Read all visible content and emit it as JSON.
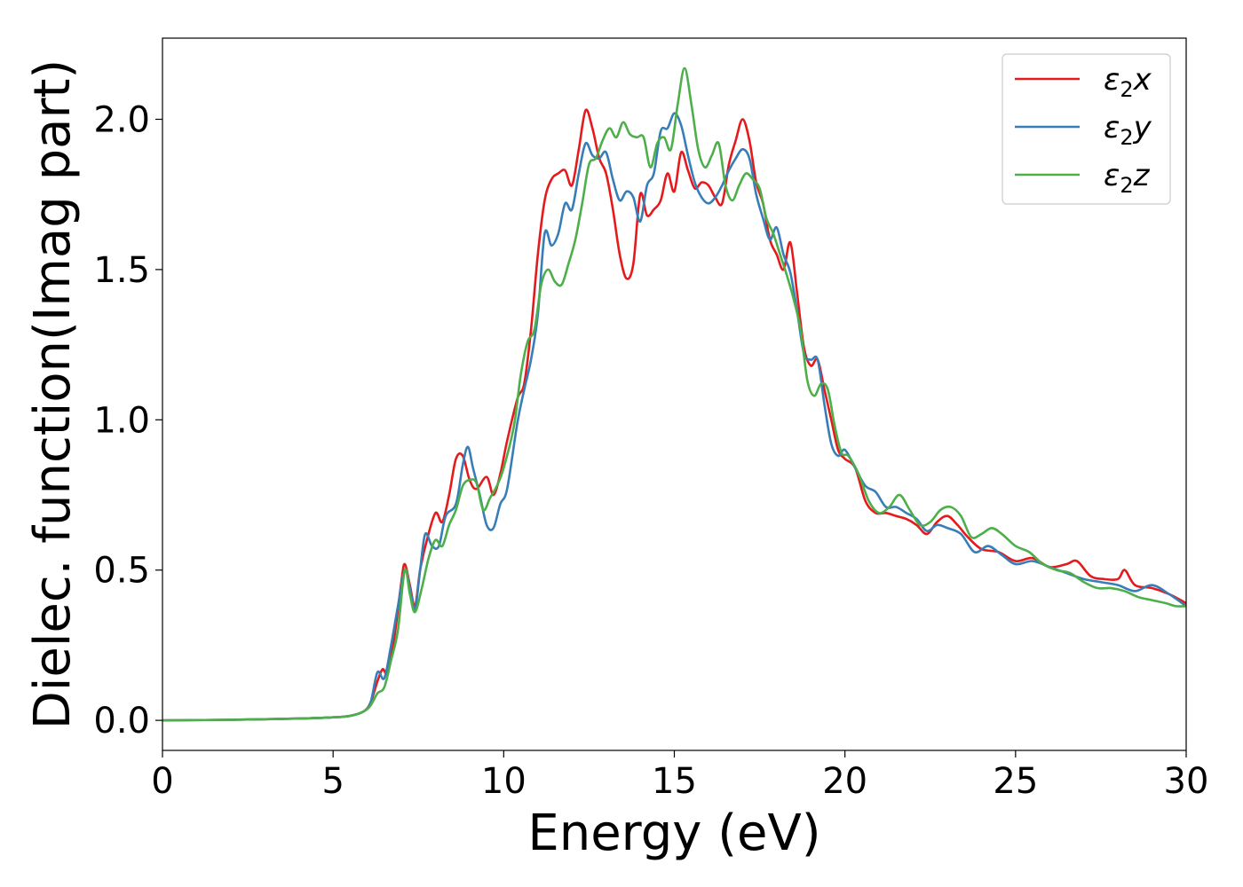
{
  "chart_data": {
    "type": "line",
    "title": "",
    "xlabel": "Energy (eV)",
    "ylabel": "Dielec. function(Imag part)",
    "xlim": [
      0,
      30
    ],
    "ylim": [
      -0.1,
      2.27
    ],
    "xticks": [
      0,
      5,
      10,
      15,
      20,
      25,
      30
    ],
    "xtick_labels": [
      "0",
      "5",
      "10",
      "15",
      "20",
      "25",
      "30"
    ],
    "yticks": [
      0.0,
      0.5,
      1.0,
      1.5,
      2.0
    ],
    "ytick_labels": [
      "0.0",
      "0.5",
      "1.0",
      "1.5",
      "2.0"
    ],
    "grid": false,
    "legend_position": "top-right",
    "series": [
      {
        "name": "ε2x",
        "legend_base": "ε",
        "legend_sub": "2",
        "legend_var": "x",
        "color": "#e41a1c",
        "points": [
          [
            0,
            0.0
          ],
          [
            2,
            0.002
          ],
          [
            4,
            0.006
          ],
          [
            5,
            0.01
          ],
          [
            5.5,
            0.015
          ],
          [
            5.9,
            0.03
          ],
          [
            6.1,
            0.06
          ],
          [
            6.3,
            0.13
          ],
          [
            6.45,
            0.17
          ],
          [
            6.6,
            0.16
          ],
          [
            6.8,
            0.28
          ],
          [
            7.0,
            0.46
          ],
          [
            7.1,
            0.52
          ],
          [
            7.25,
            0.45
          ],
          [
            7.4,
            0.38
          ],
          [
            7.55,
            0.5
          ],
          [
            7.75,
            0.6
          ],
          [
            8.0,
            0.69
          ],
          [
            8.2,
            0.66
          ],
          [
            8.4,
            0.75
          ],
          [
            8.6,
            0.87
          ],
          [
            8.8,
            0.88
          ],
          [
            9.0,
            0.8
          ],
          [
            9.2,
            0.77
          ],
          [
            9.5,
            0.81
          ],
          [
            9.7,
            0.75
          ],
          [
            9.9,
            0.82
          ],
          [
            10.1,
            0.93
          ],
          [
            10.4,
            1.07
          ],
          [
            10.6,
            1.12
          ],
          [
            10.8,
            1.3
          ],
          [
            11.0,
            1.55
          ],
          [
            11.2,
            1.73
          ],
          [
            11.4,
            1.8
          ],
          [
            11.6,
            1.82
          ],
          [
            11.8,
            1.83
          ],
          [
            12.0,
            1.78
          ],
          [
            12.2,
            1.9
          ],
          [
            12.4,
            2.03
          ],
          [
            12.6,
            1.97
          ],
          [
            12.8,
            1.87
          ],
          [
            13.0,
            1.82
          ],
          [
            13.2,
            1.7
          ],
          [
            13.4,
            1.55
          ],
          [
            13.6,
            1.47
          ],
          [
            13.8,
            1.52
          ],
          [
            14.0,
            1.75
          ],
          [
            14.2,
            1.68
          ],
          [
            14.4,
            1.7
          ],
          [
            14.6,
            1.73
          ],
          [
            14.8,
            1.82
          ],
          [
            15.0,
            1.76
          ],
          [
            15.2,
            1.89
          ],
          [
            15.4,
            1.83
          ],
          [
            15.6,
            1.77
          ],
          [
            15.8,
            1.79
          ],
          [
            16.0,
            1.78
          ],
          [
            16.2,
            1.74
          ],
          [
            16.4,
            1.72
          ],
          [
            16.6,
            1.85
          ],
          [
            16.8,
            1.93
          ],
          [
            17.0,
            2.0
          ],
          [
            17.2,
            1.93
          ],
          [
            17.4,
            1.79
          ],
          [
            17.6,
            1.72
          ],
          [
            17.8,
            1.6
          ],
          [
            18.0,
            1.55
          ],
          [
            18.2,
            1.5
          ],
          [
            18.4,
            1.59
          ],
          [
            18.6,
            1.42
          ],
          [
            18.8,
            1.24
          ],
          [
            19.0,
            1.18
          ],
          [
            19.2,
            1.2
          ],
          [
            19.4,
            1.1
          ],
          [
            19.6,
            1.0
          ],
          [
            19.8,
            0.9
          ],
          [
            20.0,
            0.87
          ],
          [
            20.3,
            0.84
          ],
          [
            20.6,
            0.73
          ],
          [
            20.9,
            0.69
          ],
          [
            21.2,
            0.69
          ],
          [
            21.5,
            0.68
          ],
          [
            21.8,
            0.67
          ],
          [
            22.1,
            0.65
          ],
          [
            22.4,
            0.62
          ],
          [
            22.7,
            0.66
          ],
          [
            23.0,
            0.68
          ],
          [
            23.3,
            0.65
          ],
          [
            23.6,
            0.61
          ],
          [
            24.0,
            0.57
          ],
          [
            24.5,
            0.56
          ],
          [
            25.0,
            0.53
          ],
          [
            25.5,
            0.54
          ],
          [
            26.0,
            0.51
          ],
          [
            26.5,
            0.52
          ],
          [
            26.8,
            0.53
          ],
          [
            27.2,
            0.48
          ],
          [
            27.6,
            0.47
          ],
          [
            28.0,
            0.47
          ],
          [
            28.2,
            0.5
          ],
          [
            28.5,
            0.45
          ],
          [
            29.0,
            0.44
          ],
          [
            29.5,
            0.42
          ],
          [
            30.0,
            0.39
          ]
        ]
      },
      {
        "name": "ε2y",
        "legend_base": "ε",
        "legend_sub": "2",
        "legend_var": "y",
        "color": "#377eb8",
        "points": [
          [
            0,
            0.0
          ],
          [
            2,
            0.002
          ],
          [
            4,
            0.006
          ],
          [
            5,
            0.01
          ],
          [
            5.5,
            0.015
          ],
          [
            5.9,
            0.03
          ],
          [
            6.1,
            0.06
          ],
          [
            6.3,
            0.16
          ],
          [
            6.5,
            0.14
          ],
          [
            6.7,
            0.25
          ],
          [
            6.9,
            0.38
          ],
          [
            7.1,
            0.5
          ],
          [
            7.25,
            0.44
          ],
          [
            7.4,
            0.37
          ],
          [
            7.55,
            0.5
          ],
          [
            7.7,
            0.62
          ],
          [
            7.9,
            0.58
          ],
          [
            8.1,
            0.58
          ],
          [
            8.3,
            0.68
          ],
          [
            8.6,
            0.72
          ],
          [
            8.8,
            0.85
          ],
          [
            8.95,
            0.91
          ],
          [
            9.1,
            0.84
          ],
          [
            9.3,
            0.75
          ],
          [
            9.5,
            0.65
          ],
          [
            9.7,
            0.64
          ],
          [
            9.9,
            0.72
          ],
          [
            10.1,
            0.77
          ],
          [
            10.4,
            0.99
          ],
          [
            10.6,
            1.1
          ],
          [
            10.8,
            1.2
          ],
          [
            11.0,
            1.35
          ],
          [
            11.2,
            1.62
          ],
          [
            11.4,
            1.58
          ],
          [
            11.6,
            1.62
          ],
          [
            11.8,
            1.72
          ],
          [
            12.0,
            1.7
          ],
          [
            12.2,
            1.82
          ],
          [
            12.4,
            1.92
          ],
          [
            12.6,
            1.88
          ],
          [
            12.8,
            1.87
          ],
          [
            13.0,
            1.89
          ],
          [
            13.2,
            1.8
          ],
          [
            13.4,
            1.73
          ],
          [
            13.6,
            1.76
          ],
          [
            13.8,
            1.74
          ],
          [
            14.0,
            1.66
          ],
          [
            14.2,
            1.78
          ],
          [
            14.4,
            1.82
          ],
          [
            14.6,
            1.96
          ],
          [
            14.8,
            1.97
          ],
          [
            15.0,
            2.02
          ],
          [
            15.2,
            1.98
          ],
          [
            15.4,
            1.88
          ],
          [
            15.6,
            1.79
          ],
          [
            15.8,
            1.74
          ],
          [
            16.0,
            1.72
          ],
          [
            16.2,
            1.74
          ],
          [
            16.4,
            1.78
          ],
          [
            16.6,
            1.83
          ],
          [
            16.8,
            1.87
          ],
          [
            17.0,
            1.9
          ],
          [
            17.2,
            1.87
          ],
          [
            17.4,
            1.75
          ],
          [
            17.6,
            1.67
          ],
          [
            17.8,
            1.6
          ],
          [
            18.0,
            1.64
          ],
          [
            18.2,
            1.55
          ],
          [
            18.4,
            1.49
          ],
          [
            18.6,
            1.36
          ],
          [
            18.8,
            1.22
          ],
          [
            19.0,
            1.2
          ],
          [
            19.2,
            1.2
          ],
          [
            19.4,
            1.05
          ],
          [
            19.6,
            0.92
          ],
          [
            19.8,
            0.88
          ],
          [
            20.0,
            0.9
          ],
          [
            20.3,
            0.84
          ],
          [
            20.6,
            0.78
          ],
          [
            20.9,
            0.76
          ],
          [
            21.2,
            0.71
          ],
          [
            21.5,
            0.71
          ],
          [
            21.8,
            0.69
          ],
          [
            22.1,
            0.67
          ],
          [
            22.4,
            0.63
          ],
          [
            22.7,
            0.65
          ],
          [
            23.0,
            0.64
          ],
          [
            23.4,
            0.62
          ],
          [
            23.8,
            0.56
          ],
          [
            24.2,
            0.58
          ],
          [
            24.6,
            0.55
          ],
          [
            25.0,
            0.52
          ],
          [
            25.5,
            0.53
          ],
          [
            26.0,
            0.51
          ],
          [
            26.5,
            0.49
          ],
          [
            27.0,
            0.47
          ],
          [
            27.5,
            0.46
          ],
          [
            28.0,
            0.45
          ],
          [
            28.5,
            0.43
          ],
          [
            29.0,
            0.45
          ],
          [
            29.5,
            0.42
          ],
          [
            30.0,
            0.38
          ]
        ]
      },
      {
        "name": "ε2z",
        "legend_base": "ε",
        "legend_sub": "2",
        "legend_var": "z",
        "color": "#4daf4a",
        "points": [
          [
            0,
            0.0
          ],
          [
            2,
            0.002
          ],
          [
            4,
            0.006
          ],
          [
            5,
            0.01
          ],
          [
            5.5,
            0.015
          ],
          [
            5.9,
            0.03
          ],
          [
            6.1,
            0.05
          ],
          [
            6.3,
            0.09
          ],
          [
            6.5,
            0.11
          ],
          [
            6.7,
            0.2
          ],
          [
            6.9,
            0.3
          ],
          [
            7.1,
            0.5
          ],
          [
            7.25,
            0.42
          ],
          [
            7.4,
            0.36
          ],
          [
            7.6,
            0.44
          ],
          [
            7.8,
            0.54
          ],
          [
            8.0,
            0.6
          ],
          [
            8.2,
            0.58
          ],
          [
            8.4,
            0.65
          ],
          [
            8.6,
            0.7
          ],
          [
            8.8,
            0.78
          ],
          [
            9.0,
            0.8
          ],
          [
            9.2,
            0.79
          ],
          [
            9.4,
            0.7
          ],
          [
            9.6,
            0.74
          ],
          [
            9.8,
            0.78
          ],
          [
            10.0,
            0.84
          ],
          [
            10.3,
            0.98
          ],
          [
            10.5,
            1.15
          ],
          [
            10.7,
            1.26
          ],
          [
            10.9,
            1.3
          ],
          [
            11.1,
            1.45
          ],
          [
            11.3,
            1.5
          ],
          [
            11.5,
            1.46
          ],
          [
            11.7,
            1.45
          ],
          [
            11.9,
            1.52
          ],
          [
            12.1,
            1.6
          ],
          [
            12.3,
            1.72
          ],
          [
            12.5,
            1.85
          ],
          [
            12.7,
            1.87
          ],
          [
            12.9,
            1.93
          ],
          [
            13.1,
            1.97
          ],
          [
            13.3,
            1.94
          ],
          [
            13.5,
            1.99
          ],
          [
            13.7,
            1.95
          ],
          [
            13.9,
            1.94
          ],
          [
            14.1,
            1.94
          ],
          [
            14.3,
            1.84
          ],
          [
            14.5,
            1.92
          ],
          [
            14.7,
            1.94
          ],
          [
            14.9,
            1.9
          ],
          [
            15.1,
            2.05
          ],
          [
            15.3,
            2.17
          ],
          [
            15.5,
            2.05
          ],
          [
            15.7,
            1.9
          ],
          [
            15.9,
            1.84
          ],
          [
            16.1,
            1.88
          ],
          [
            16.3,
            1.92
          ],
          [
            16.5,
            1.78
          ],
          [
            16.7,
            1.73
          ],
          [
            16.9,
            1.78
          ],
          [
            17.1,
            1.82
          ],
          [
            17.3,
            1.8
          ],
          [
            17.5,
            1.77
          ],
          [
            17.7,
            1.67
          ],
          [
            17.9,
            1.62
          ],
          [
            18.1,
            1.55
          ],
          [
            18.3,
            1.48
          ],
          [
            18.5,
            1.4
          ],
          [
            18.7,
            1.3
          ],
          [
            18.9,
            1.13
          ],
          [
            19.1,
            1.08
          ],
          [
            19.3,
            1.12
          ],
          [
            19.5,
            1.1
          ],
          [
            19.7,
            0.98
          ],
          [
            19.9,
            0.89
          ],
          [
            20.1,
            0.88
          ],
          [
            20.4,
            0.82
          ],
          [
            20.7,
            0.73
          ],
          [
            21.0,
            0.69
          ],
          [
            21.3,
            0.71
          ],
          [
            21.6,
            0.75
          ],
          [
            21.9,
            0.7
          ],
          [
            22.2,
            0.65
          ],
          [
            22.5,
            0.66
          ],
          [
            22.8,
            0.7
          ],
          [
            23.1,
            0.71
          ],
          [
            23.4,
            0.68
          ],
          [
            23.7,
            0.61
          ],
          [
            24.0,
            0.62
          ],
          [
            24.3,
            0.64
          ],
          [
            24.6,
            0.62
          ],
          [
            25.0,
            0.58
          ],
          [
            25.4,
            0.56
          ],
          [
            25.8,
            0.52
          ],
          [
            26.2,
            0.5
          ],
          [
            26.6,
            0.49
          ],
          [
            27.0,
            0.46
          ],
          [
            27.4,
            0.44
          ],
          [
            27.8,
            0.44
          ],
          [
            28.2,
            0.43
          ],
          [
            28.6,
            0.41
          ],
          [
            29.0,
            0.4
          ],
          [
            29.4,
            0.39
          ],
          [
            29.7,
            0.38
          ],
          [
            30.0,
            0.38
          ]
        ]
      }
    ]
  }
}
